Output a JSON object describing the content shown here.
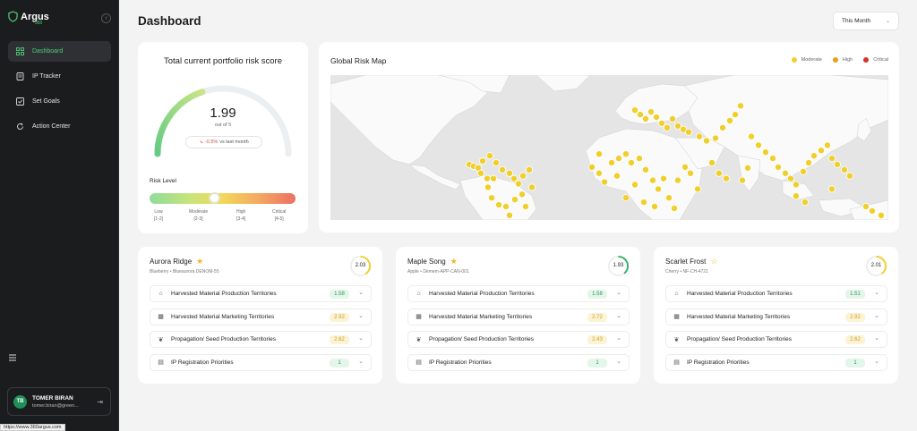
{
  "sidebar": {
    "brand_name": "Argus",
    "brand_sub": "360",
    "items": [
      {
        "label": "Dashboard",
        "icon": "grid-icon",
        "active": true
      },
      {
        "label": "IP Tracker",
        "icon": "document-icon",
        "active": false
      },
      {
        "label": "Set Goals",
        "icon": "target-icon",
        "active": false
      },
      {
        "label": "Action Center",
        "icon": "refresh-icon",
        "active": false
      }
    ],
    "user": {
      "initials": "TB",
      "name": "TOMER BIRAN",
      "email": "tomer.biran@green..."
    }
  },
  "status_url": "https://www.360argus.com",
  "header": {
    "title": "Dashboard",
    "period": "This Month"
  },
  "risk": {
    "title": "Total current portfolio risk score",
    "score": "1.99",
    "out_of": "out of 5",
    "trend": "-0.5%",
    "trend_suffix": "vs last month",
    "level_label": "Risk Level",
    "score_fraction": 0.398,
    "scale": [
      {
        "name": "Low",
        "range": "[1-2]"
      },
      {
        "name": "Moderate",
        "range": "[2-3]"
      },
      {
        "name": "High",
        "range": "[3-4]"
      },
      {
        "name": "Critical",
        "range": "[4-5]"
      }
    ]
  },
  "map": {
    "title": "Global Risk Map",
    "legend": [
      {
        "label": "Moderate",
        "color": "#f0cf2a"
      },
      {
        "label": "High",
        "color": "#e3a21a"
      },
      {
        "label": "Critical",
        "color": "#d6322b"
      }
    ]
  },
  "varieties": [
    {
      "name": "Aurora Ridge",
      "starred": true,
      "sub": "Blueberry • Blueaurora DENOM-55",
      "score": "2.03",
      "score_color": "#f0cf2a",
      "score_fraction": 0.41,
      "rows": [
        {
          "label": "Harvested Material Production Territories",
          "value": "1.58",
          "tone": "green"
        },
        {
          "label": "Harvested Material Marketing Territories",
          "value": "2.92",
          "tone": "yellow"
        },
        {
          "label": "Propagation/ Seed Production Territories",
          "value": "2.62",
          "tone": "yellow"
        },
        {
          "label": "IP Registration Priorities",
          "value": "1",
          "tone": "green"
        }
      ]
    },
    {
      "name": "Maple Song",
      "starred": true,
      "sub": "Apple • Demem-APP-CAN-001",
      "score": "1.93",
      "score_color": "#2fb36a",
      "score_fraction": 0.39,
      "rows": [
        {
          "label": "Harvested Material Production Territories",
          "value": "1.58",
          "tone": "green"
        },
        {
          "label": "Harvested Material Marketing Territories",
          "value": "2.72",
          "tone": "yellow"
        },
        {
          "label": "Propagation/ Seed Production Territories",
          "value": "2.43",
          "tone": "yellow"
        },
        {
          "label": "IP Registration Priorities",
          "value": "1",
          "tone": "green"
        }
      ]
    },
    {
      "name": "Scarlet Frost",
      "starred": false,
      "sub": "Cherry • NF-CH-4721",
      "score": "2.01",
      "score_color": "#f0cf2a",
      "score_fraction": 0.4,
      "rows": [
        {
          "label": "Harvested Material Production Territories",
          "value": "1.51",
          "tone": "green"
        },
        {
          "label": "Harvested Material Marketing Territories",
          "value": "2.92",
          "tone": "yellow"
        },
        {
          "label": "Propagation/ Seed Production Territories",
          "value": "2.62",
          "tone": "yellow"
        },
        {
          "label": "IP Registration Priorities",
          "value": "1",
          "tone": "green"
        }
      ]
    }
  ]
}
